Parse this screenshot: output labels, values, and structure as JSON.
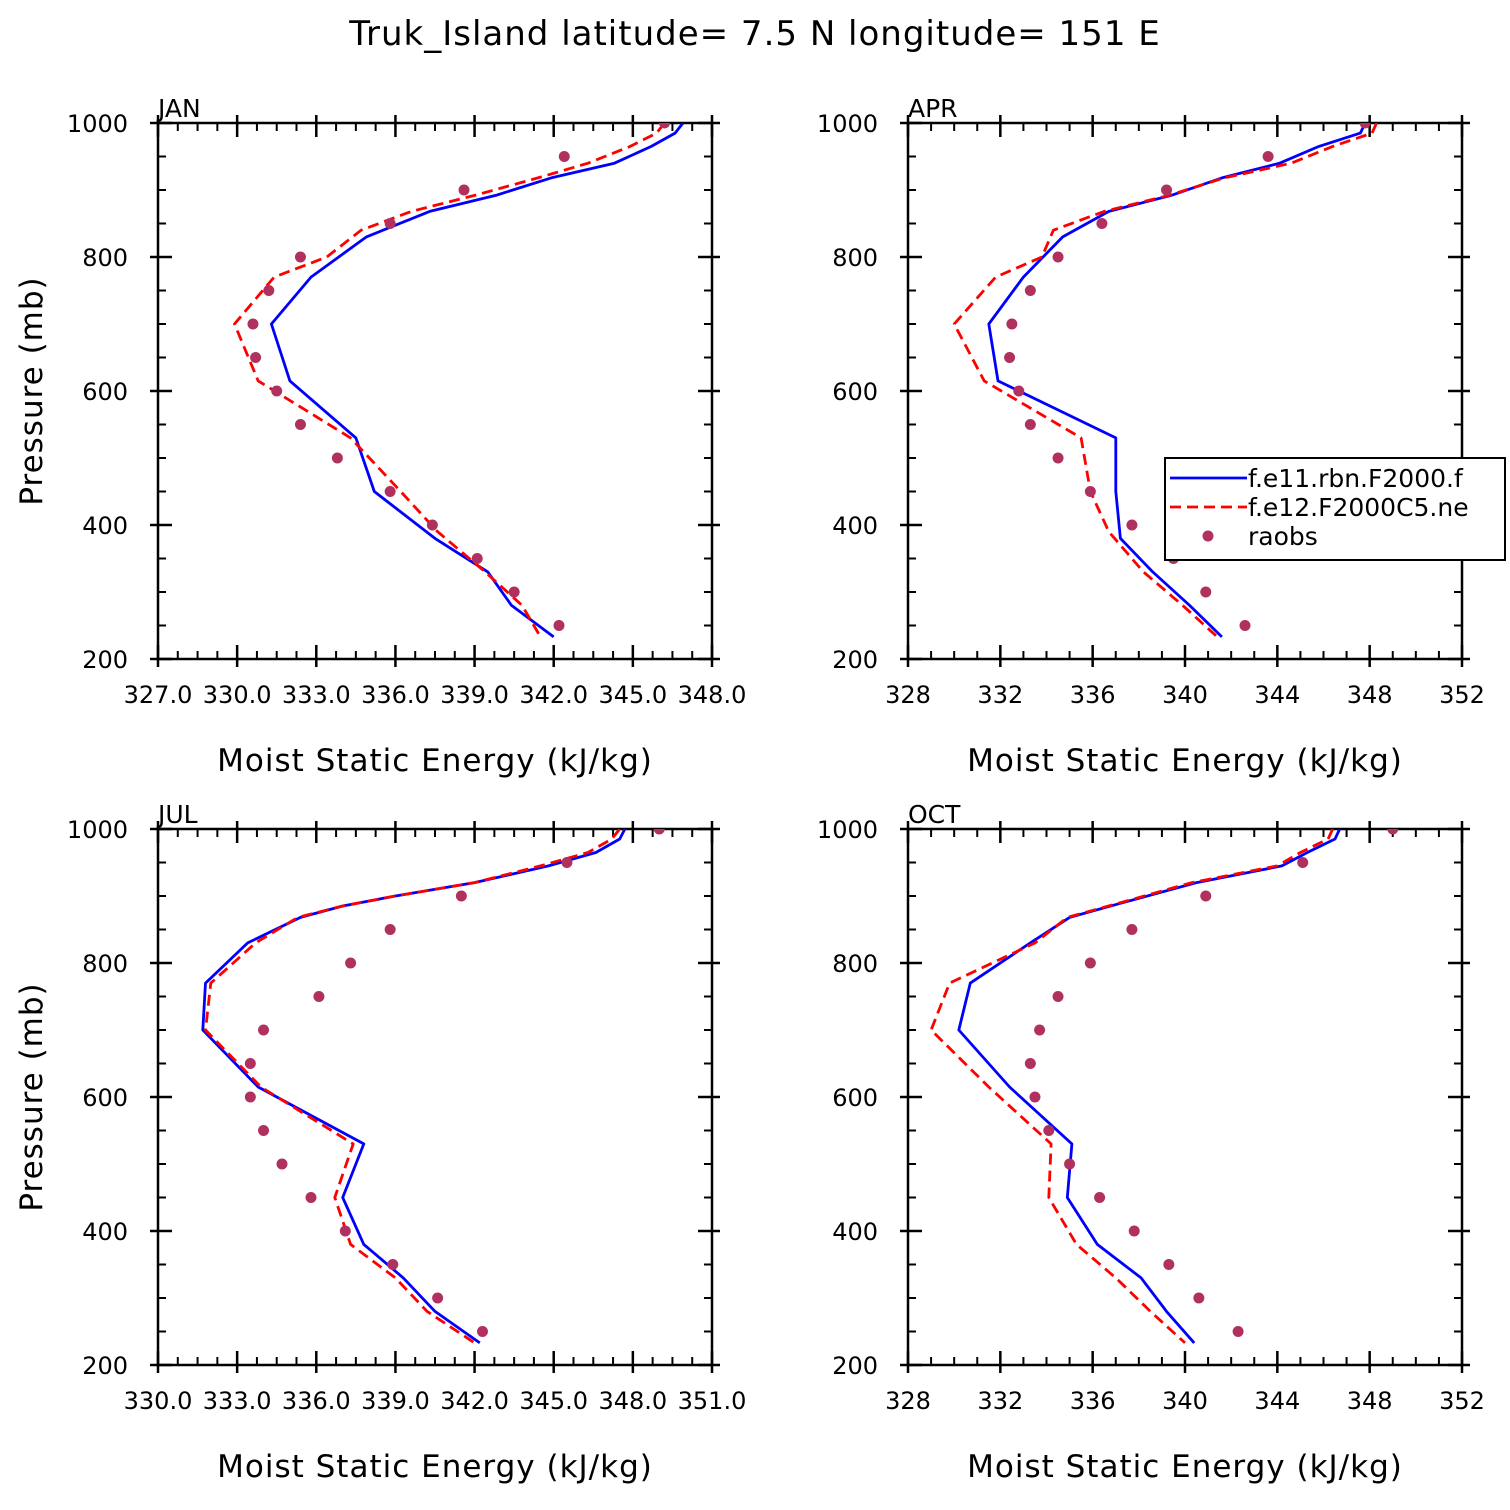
{
  "figure": {
    "title": "Truk_Island  latitude= 7.5 N longitude= 151 E"
  },
  "legend": {
    "items": [
      {
        "label": "f.e11.rbn.F2000.f",
        "color": "#0000ff",
        "style": "solid"
      },
      {
        "label": "f.e12.F2000C5.ne",
        "color": "#ff0000",
        "style": "dashed"
      },
      {
        "label": "raobs",
        "color": "#b03060",
        "style": "dots"
      }
    ]
  },
  "chart_data": [
    {
      "type": "line",
      "title": "JAN",
      "xlabel": "Moist Static Energy (kJ/kg)",
      "ylabel": "Pressure (mb)",
      "xlim": [
        327.0,
        348.0
      ],
      "ylim": [
        1000,
        200
      ],
      "x_ticks": [
        327.0,
        330.0,
        333.0,
        336.0,
        339.0,
        342.0,
        345.0,
        348.0
      ],
      "x_tick_labels": [
        "327.0",
        "330.0",
        "333.0",
        "336.0",
        "339.0",
        "342.0",
        "345.0",
        "348.0"
      ],
      "y_ticks": [
        200,
        400,
        600,
        800,
        1000
      ],
      "y_tick_labels": [
        "200",
        "400",
        "600",
        "800",
        "1000"
      ],
      "series": [
        {
          "name": "f.e11.rbn.F2000.f",
          "color": "#0000ff",
          "style": "solid",
          "x": [
            346.9,
            346.6,
            345.7,
            344.3,
            341.9,
            339.8,
            337.3,
            334.9,
            332.8,
            331.3,
            332.0,
            334.5,
            335.2,
            337.5,
            339.5,
            340.4,
            342.0
          ],
          "y": [
            1000,
            985,
            965,
            940,
            918,
            892,
            868,
            830,
            770,
            700,
            615,
            530,
            450,
            380,
            330,
            280,
            233
          ]
        },
        {
          "name": "f.e12.F2000C5.ne",
          "color": "#ff0000",
          "style": "dashed",
          "x": [
            346.2,
            345.9,
            344.9,
            343.3,
            341.4,
            339.0,
            336.6,
            334.7,
            333.4,
            331.4,
            329.9,
            330.8,
            334.3,
            336.2,
            337.6,
            339.4,
            340.8,
            341.5
          ],
          "y": [
            1000,
            985,
            965,
            940,
            918,
            892,
            868,
            840,
            800,
            770,
            700,
            615,
            530,
            450,
            390,
            330,
            280,
            233
          ]
        },
        {
          "name": "raobs",
          "color": "#b03060",
          "style": "dots",
          "x": [
            346.2,
            342.4,
            338.6,
            335.8,
            332.4,
            331.2,
            330.6,
            330.7,
            331.5,
            332.4,
            333.8,
            335.8,
            337.4,
            339.1,
            340.5,
            342.2
          ],
          "y": [
            1000,
            950,
            900,
            850,
            800,
            750,
            700,
            650,
            600,
            550,
            500,
            450,
            400,
            350,
            300,
            250
          ]
        }
      ]
    },
    {
      "type": "line",
      "title": "APR",
      "xlabel": "Moist Static Energy (kJ/kg)",
      "ylabel": "",
      "xlim": [
        328,
        352
      ],
      "ylim": [
        1000,
        200
      ],
      "x_ticks": [
        328,
        332,
        336,
        340,
        344,
        348,
        352
      ],
      "x_tick_labels": [
        "328",
        "332",
        "336",
        "340",
        "344",
        "348",
        "352"
      ],
      "y_ticks": [
        200,
        400,
        600,
        800,
        1000
      ],
      "y_tick_labels": [
        "200",
        "400",
        "600",
        "800",
        "1000"
      ],
      "series": [
        {
          "name": "f.e11.rbn.F2000.f",
          "color": "#0000ff",
          "style": "solid",
          "x": [
            347.8,
            347.6,
            345.8,
            344.1,
            341.6,
            339.4,
            336.7,
            334.7,
            333.0,
            331.5,
            331.9,
            337.0,
            337.0,
            337.2,
            338.6,
            340.2,
            341.6
          ],
          "y": [
            1000,
            985,
            965,
            940,
            918,
            892,
            868,
            830,
            770,
            700,
            615,
            530,
            450,
            380,
            330,
            280,
            233
          ]
        },
        {
          "name": "f.e12.F2000C5.ne",
          "color": "#ff0000",
          "style": "dashed",
          "x": [
            348.3,
            348.1,
            346.4,
            344.6,
            341.7,
            339.3,
            336.5,
            334.3,
            333.8,
            331.8,
            330.0,
            331.3,
            335.5,
            335.9,
            336.7,
            338.2,
            339.9,
            341.4
          ],
          "y": [
            1000,
            985,
            965,
            940,
            918,
            892,
            868,
            840,
            800,
            770,
            700,
            615,
            530,
            450,
            390,
            330,
            280,
            233
          ]
        },
        {
          "name": "raobs",
          "color": "#b03060",
          "style": "dots",
          "x": [
            347.8,
            343.6,
            339.2,
            336.4,
            334.5,
            333.3,
            332.5,
            332.4,
            332.8,
            333.3,
            334.5,
            335.9,
            337.7,
            339.5,
            340.9,
            342.6
          ],
          "y": [
            1000,
            950,
            900,
            850,
            800,
            750,
            700,
            650,
            600,
            550,
            500,
            450,
            400,
            350,
            300,
            250
          ]
        }
      ]
    },
    {
      "type": "line",
      "title": "JUL",
      "xlabel": "Moist Static Energy (kJ/kg)",
      "ylabel": "Pressure (mb)",
      "xlim": [
        330.0,
        351.0
      ],
      "ylim": [
        1000,
        200
      ],
      "x_ticks": [
        330.0,
        333.0,
        336.0,
        339.0,
        342.0,
        345.0,
        348.0,
        351.0
      ],
      "x_tick_labels": [
        "330.0",
        "333.0",
        "336.0",
        "339.0",
        "342.0",
        "345.0",
        "348.0",
        "351.0"
      ],
      "y_ticks": [
        200,
        400,
        600,
        800,
        1000
      ],
      "y_tick_labels": [
        "200",
        "400",
        "600",
        "800",
        "1000"
      ],
      "series": [
        {
          "name": "f.e11.rbn.F2000.f",
          "color": "#0000ff",
          "style": "solid",
          "x": [
            347.7,
            347.5,
            346.6,
            344.8,
            342.0,
            339.0,
            337.0,
            335.4,
            333.4,
            331.8,
            331.7,
            333.8,
            337.8,
            337.0,
            337.8,
            339.3,
            340.5,
            342.2
          ],
          "y": [
            1000,
            985,
            965,
            945,
            920,
            900,
            885,
            868,
            830,
            770,
            700,
            615,
            530,
            450,
            380,
            330,
            280,
            233
          ]
        },
        {
          "name": "f.e12.F2000C5.ne",
          "color": "#ff0000",
          "style": "dashed",
          "x": [
            347.5,
            347.2,
            346.3,
            344.5,
            342.0,
            339.0,
            337.0,
            335.3,
            333.7,
            332.0,
            331.8,
            333.9,
            337.4,
            336.7,
            337.3,
            339.0,
            340.2,
            342.0
          ],
          "y": [
            1000,
            985,
            965,
            945,
            920,
            900,
            885,
            868,
            830,
            770,
            700,
            615,
            530,
            450,
            380,
            330,
            280,
            233
          ]
        },
        {
          "name": "raobs",
          "color": "#b03060",
          "style": "dots",
          "x": [
            349.0,
            345.5,
            341.5,
            338.8,
            337.3,
            336.1,
            334.0,
            333.5,
            333.5,
            334.0,
            334.7,
            335.8,
            337.1,
            338.9,
            340.6,
            342.3
          ],
          "y": [
            1000,
            950,
            900,
            850,
            800,
            750,
            700,
            650,
            600,
            550,
            500,
            450,
            400,
            350,
            300,
            250
          ]
        }
      ]
    },
    {
      "type": "line",
      "title": "OCT",
      "xlabel": "Moist Static Energy (kJ/kg)",
      "ylabel": "",
      "xlim": [
        328,
        352
      ],
      "ylim": [
        1000,
        200
      ],
      "x_ticks": [
        328,
        332,
        336,
        340,
        344,
        348,
        352
      ],
      "x_tick_labels": [
        "328",
        "332",
        "336",
        "340",
        "344",
        "348",
        "352"
      ],
      "y_ticks": [
        200,
        400,
        600,
        800,
        1000
      ],
      "y_tick_labels": [
        "200",
        "400",
        "600",
        "800",
        "1000"
      ],
      "series": [
        {
          "name": "f.e11.rbn.F2000.f",
          "color": "#0000ff",
          "style": "solid",
          "x": [
            346.7,
            346.5,
            345.3,
            344.2,
            340.5,
            337.3,
            335.0,
            333.3,
            330.7,
            330.2,
            332.4,
            335.1,
            334.9,
            336.2,
            338.1,
            339.2,
            340.4
          ],
          "y": [
            1000,
            985,
            965,
            945,
            920,
            890,
            868,
            830,
            770,
            700,
            615,
            530,
            450,
            380,
            330,
            280,
            233
          ]
        },
        {
          "name": "f.e12.F2000C5.ne",
          "color": "#ff0000",
          "style": "dashed",
          "x": [
            346.4,
            346.2,
            345.0,
            344.0,
            340.3,
            337.2,
            334.9,
            333.5,
            329.8,
            329.0,
            331.5,
            334.2,
            334.1,
            335.3,
            337.0,
            338.5,
            340.0
          ],
          "y": [
            1000,
            985,
            965,
            945,
            920,
            890,
            868,
            830,
            770,
            700,
            615,
            530,
            450,
            380,
            330,
            280,
            233
          ]
        },
        {
          "name": "raobs",
          "color": "#b03060",
          "style": "dots",
          "x": [
            349.0,
            345.1,
            340.9,
            337.7,
            335.9,
            334.5,
            333.7,
            333.3,
            333.5,
            334.1,
            335.0,
            336.3,
            337.8,
            339.3,
            340.6,
            342.3
          ],
          "y": [
            1000,
            950,
            900,
            850,
            800,
            750,
            700,
            650,
            600,
            550,
            500,
            450,
            400,
            350,
            300,
            250
          ]
        }
      ]
    }
  ]
}
